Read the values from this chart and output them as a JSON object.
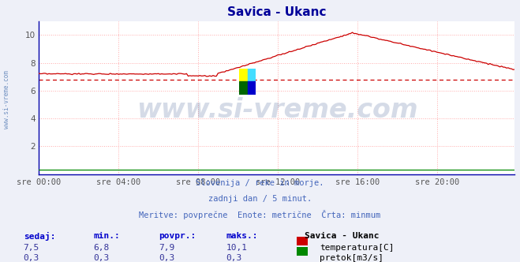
{
  "title": "Savica - Ukanc",
  "title_color": "#000099",
  "bg_color": "#eef0f8",
  "plot_bg_color": "#ffffff",
  "grid_color": "#ffaaaa",
  "grid_style": "dotted",
  "xlabel_ticks": [
    "sre 00:00",
    "sre 04:00",
    "sre 08:00",
    "sre 12:00",
    "sre 16:00",
    "sre 20:00"
  ],
  "ylim": [
    0,
    11
  ],
  "yticks": [
    2,
    4,
    6,
    8,
    10
  ],
  "watermark_text": "www.si-vreme.com",
  "watermark_color": "#1a3a7a",
  "watermark_alpha": 0.18,
  "subtitle_lines": [
    "Slovenija / reke in morje.",
    "zadnji dan / 5 minut.",
    "Meritve: povprečne  Enote: metrične  Črta: minmum"
  ],
  "subtitle_color": "#4466bb",
  "temp_color": "#cc0000",
  "flow_color": "#008800",
  "min_line_color": "#cc0000",
  "min_line_value": 6.8,
  "table_headers": [
    "sedaj:",
    "min.:",
    "povpr.:",
    "maks.:"
  ],
  "table_header_color": "#0000cc",
  "table_data_color": "#333399",
  "table_row1": [
    "7,5",
    "6,8",
    "7,9",
    "10,1"
  ],
  "table_row2": [
    "0,3",
    "0,3",
    "0,3",
    "0,3"
  ],
  "legend_title": "Savica - Ukanc",
  "legend_entries": [
    "temperatura[C]",
    "pretok[m3/s]"
  ],
  "legend_colors": [
    "#cc0000",
    "#008800"
  ],
  "left_label": "www.si-vreme.com",
  "left_label_color": "#7090c0",
  "num_points": 288,
  "axis_color": "#0000aa",
  "tick_color": "#555555"
}
